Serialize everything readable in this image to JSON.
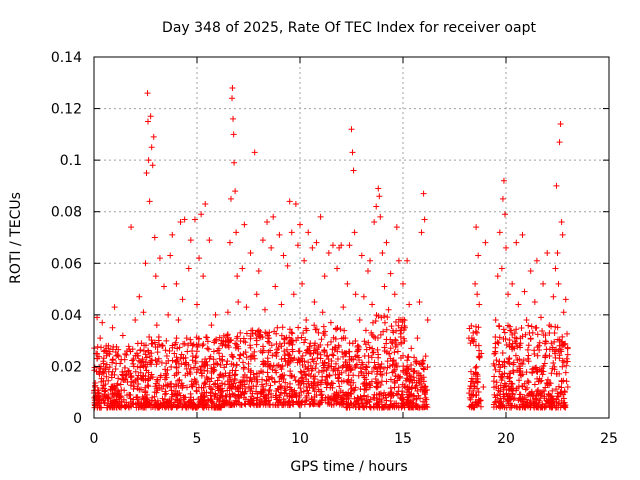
{
  "chart_data": {
    "type": "scatter",
    "title": "Day 348 of 2025, Rate Of TEC Index for receiver oapt",
    "xlabel": "GPS time / hours",
    "ylabel": "ROTI / TECUs",
    "xlim": [
      0,
      25
    ],
    "ylim": [
      0,
      0.14
    ],
    "x_ticks": [
      0,
      5,
      10,
      15,
      20,
      25
    ],
    "y_ticks": [
      0,
      0.02,
      0.04,
      0.06,
      0.08,
      0.1,
      0.12,
      0.14
    ],
    "x_tick_labels": [
      "0",
      "5",
      "10",
      "15",
      "20",
      "25"
    ],
    "y_tick_labels": [
      "0",
      "0.02",
      "0.04",
      "0.06",
      "0.08",
      "0.1",
      "0.12",
      "0.14"
    ],
    "grid": true,
    "marker": "+",
    "color": "#ff0000",
    "series": [
      {
        "points": [
          [
            0.05,
            0.012
          ],
          [
            0.1,
            0.025
          ],
          [
            0.15,
            0.039
          ],
          [
            0.2,
            0.008
          ],
          [
            0.25,
            0.018
          ],
          [
            0.3,
            0.031
          ],
          [
            0.35,
            0.014
          ],
          [
            0.4,
            0.037
          ],
          [
            0.45,
            0.022
          ],
          [
            0.5,
            0.009
          ],
          [
            0.6,
            0.016
          ],
          [
            0.7,
            0.028
          ],
          [
            0.8,
            0.011
          ],
          [
            0.9,
            0.035
          ],
          [
            1.0,
            0.043
          ],
          [
            1.05,
            0.019
          ],
          [
            1.1,
            0.007
          ],
          [
            1.2,
            0.024
          ],
          [
            1.3,
            0.013
          ],
          [
            1.4,
            0.032
          ],
          [
            1.5,
            0.018
          ],
          [
            1.6,
            0.026
          ],
          [
            1.7,
            0.009
          ],
          [
            1.8,
            0.074
          ],
          [
            1.9,
            0.021
          ],
          [
            2.0,
            0.038
          ],
          [
            2.1,
            0.015
          ],
          [
            2.2,
            0.047
          ],
          [
            2.3,
            0.029
          ],
          [
            2.4,
            0.041
          ],
          [
            2.5,
            0.06
          ],
          [
            2.55,
            0.095
          ],
          [
            2.6,
            0.126
          ],
          [
            2.62,
            0.115
          ],
          [
            2.65,
            0.1
          ],
          [
            2.7,
            0.084
          ],
          [
            2.75,
            0.117
          ],
          [
            2.8,
            0.105
          ],
          [
            2.85,
            0.098
          ],
          [
            2.9,
            0.109
          ],
          [
            2.95,
            0.07
          ],
          [
            3.0,
            0.055
          ],
          [
            3.05,
            0.036
          ],
          [
            3.1,
            0.022
          ],
          [
            3.2,
            0.062
          ],
          [
            3.3,
            0.028
          ],
          [
            3.4,
            0.051
          ],
          [
            3.5,
            0.017
          ],
          [
            3.6,
            0.04
          ],
          [
            3.7,
            0.063
          ],
          [
            3.8,
            0.071
          ],
          [
            3.9,
            0.025
          ],
          [
            4.0,
            0.052
          ],
          [
            4.1,
            0.038
          ],
          [
            4.2,
            0.076
          ],
          [
            4.3,
            0.046
          ],
          [
            4.4,
            0.077
          ],
          [
            4.5,
            0.031
          ],
          [
            4.6,
            0.058
          ],
          [
            4.7,
            0.069
          ],
          [
            4.8,
            0.024
          ],
          [
            4.9,
            0.077
          ],
          [
            5.0,
            0.044
          ],
          [
            5.1,
            0.062
          ],
          [
            5.2,
            0.079
          ],
          [
            5.3,
            0.055
          ],
          [
            5.4,
            0.083
          ],
          [
            5.5,
            0.027
          ],
          [
            5.6,
            0.069
          ],
          [
            5.7,
            0.036
          ],
          [
            5.8,
            0.018
          ],
          [
            5.9,
            0.04
          ],
          [
            6.0,
            0.012
          ],
          [
            6.1,
            0.023
          ],
          [
            6.2,
            0.03
          ],
          [
            6.3,
            0.016
          ],
          [
            6.4,
            0.028
          ],
          [
            6.5,
            0.041
          ],
          [
            6.6,
            0.068
          ],
          [
            6.65,
            0.085
          ],
          [
            6.7,
            0.124
          ],
          [
            6.72,
            0.128
          ],
          [
            6.75,
            0.116
          ],
          [
            6.78,
            0.11
          ],
          [
            6.8,
            0.099
          ],
          [
            6.85,
            0.088
          ],
          [
            6.9,
            0.072
          ],
          [
            6.95,
            0.055
          ],
          [
            7.0,
            0.045
          ],
          [
            7.1,
            0.033
          ],
          [
            7.2,
            0.058
          ],
          [
            7.3,
            0.075
          ],
          [
            7.4,
            0.043
          ],
          [
            7.5,
            0.021
          ],
          [
            7.6,
            0.064
          ],
          [
            7.7,
            0.034
          ],
          [
            7.8,
            0.103
          ],
          [
            7.9,
            0.048
          ],
          [
            8.0,
            0.057
          ],
          [
            8.1,
            0.026
          ],
          [
            8.2,
            0.069
          ],
          [
            8.3,
            0.042
          ],
          [
            8.4,
            0.076
          ],
          [
            8.5,
            0.031
          ],
          [
            8.6,
            0.066
          ],
          [
            8.7,
            0.078
          ],
          [
            8.8,
            0.051
          ],
          [
            8.9,
            0.035
          ],
          [
            9.0,
            0.071
          ],
          [
            9.1,
            0.044
          ],
          [
            9.2,
            0.063
          ],
          [
            9.3,
            0.022
          ],
          [
            9.4,
            0.059
          ],
          [
            9.5,
            0.084
          ],
          [
            9.6,
            0.072
          ],
          [
            9.7,
            0.048
          ],
          [
            9.8,
            0.083
          ],
          [
            9.9,
            0.067
          ],
          [
            10.0,
            0.075
          ],
          [
            10.1,
            0.052
          ],
          [
            10.2,
            0.061
          ],
          [
            10.3,
            0.038
          ],
          [
            10.4,
            0.072
          ],
          [
            10.5,
            0.029
          ],
          [
            10.6,
            0.066
          ],
          [
            10.7,
            0.045
          ],
          [
            10.8,
            0.068
          ],
          [
            10.9,
            0.033
          ],
          [
            11.0,
            0.078
          ],
          [
            11.1,
            0.041
          ],
          [
            11.2,
            0.055
          ],
          [
            11.3,
            0.024
          ],
          [
            11.4,
            0.064
          ],
          [
            11.5,
            0.037
          ],
          [
            11.6,
            0.067
          ],
          [
            11.7,
            0.019
          ],
          [
            11.8,
            0.058
          ],
          [
            11.9,
            0.066
          ],
          [
            12.0,
            0.067
          ],
          [
            12.1,
            0.043
          ],
          [
            12.2,
            0.031
          ],
          [
            12.3,
            0.052
          ],
          [
            12.4,
            0.067
          ],
          [
            12.5,
            0.112
          ],
          [
            12.55,
            0.103
          ],
          [
            12.6,
            0.096
          ],
          [
            12.65,
            0.072
          ],
          [
            12.7,
            0.048
          ],
          [
            12.8,
            0.026
          ],
          [
            12.9,
            0.038
          ],
          [
            13.0,
            0.063
          ],
          [
            13.1,
            0.047
          ],
          [
            13.2,
            0.034
          ],
          [
            13.3,
            0.057
          ],
          [
            13.4,
            0.061
          ],
          [
            13.5,
            0.044
          ],
          [
            13.6,
            0.076
          ],
          [
            13.7,
            0.082
          ],
          [
            13.8,
            0.089
          ],
          [
            13.85,
            0.086
          ],
          [
            13.9,
            0.078
          ],
          [
            14.0,
            0.064
          ],
          [
            14.1,
            0.051
          ],
          [
            14.2,
            0.068
          ],
          [
            14.3,
            0.042
          ],
          [
            14.4,
            0.056
          ],
          [
            14.5,
            0.029
          ],
          [
            14.6,
            0.048
          ],
          [
            14.7,
            0.074
          ],
          [
            14.8,
            0.061
          ],
          [
            14.9,
            0.038
          ],
          [
            15.0,
            0.052
          ],
          [
            15.1,
            0.035
          ],
          [
            15.2,
            0.061
          ],
          [
            15.3,
            0.044
          ],
          [
            15.4,
            0.027
          ],
          [
            15.5,
            0.018
          ],
          [
            15.6,
            0.012
          ],
          [
            15.7,
            0.031
          ],
          [
            15.8,
            0.045
          ],
          [
            15.9,
            0.072
          ],
          [
            16.0,
            0.087
          ],
          [
            16.05,
            0.077
          ],
          [
            16.1,
            0.024
          ],
          [
            16.2,
            0.038
          ],
          [
            18.2,
            0.031
          ],
          [
            18.3,
            0.018
          ],
          [
            18.4,
            0.014
          ],
          [
            18.5,
            0.052
          ],
          [
            18.55,
            0.074
          ],
          [
            18.6,
            0.048
          ],
          [
            18.65,
            0.063
          ],
          [
            18.7,
            0.044
          ],
          [
            18.8,
            0.025
          ],
          [
            18.9,
            0.012
          ],
          [
            19.0,
            0.068
          ],
          [
            19.4,
            0.021
          ],
          [
            19.5,
            0.038
          ],
          [
            19.6,
            0.055
          ],
          [
            19.7,
            0.072
          ],
          [
            19.8,
            0.058
          ],
          [
            19.85,
            0.085
          ],
          [
            19.9,
            0.092
          ],
          [
            19.95,
            0.079
          ],
          [
            20.0,
            0.066
          ],
          [
            20.1,
            0.048
          ],
          [
            20.2,
            0.034
          ],
          [
            20.3,
            0.052
          ],
          [
            20.4,
            0.027
          ],
          [
            20.5,
            0.068
          ],
          [
            20.6,
            0.044
          ],
          [
            20.7,
            0.031
          ],
          [
            20.8,
            0.071
          ],
          [
            20.9,
            0.049
          ],
          [
            21.0,
            0.038
          ],
          [
            21.1,
            0.022
          ],
          [
            21.2,
            0.057
          ],
          [
            21.3,
            0.033
          ],
          [
            21.4,
            0.045
          ],
          [
            21.5,
            0.061
          ],
          [
            21.6,
            0.028
          ],
          [
            21.7,
            0.039
          ],
          [
            21.8,
            0.052
          ],
          [
            21.9,
            0.024
          ],
          [
            22.0,
            0.064
          ],
          [
            22.1,
            0.036
          ],
          [
            22.2,
            0.029
          ],
          [
            22.3,
            0.047
          ],
          [
            22.4,
            0.058
          ],
          [
            22.45,
            0.09
          ],
          [
            22.5,
            0.064
          ],
          [
            22.55,
            0.052
          ],
          [
            22.6,
            0.107
          ],
          [
            22.65,
            0.114
          ],
          [
            22.7,
            0.076
          ],
          [
            22.75,
            0.071
          ],
          [
            22.8,
            0.041
          ],
          [
            22.9,
            0.046
          ],
          [
            22.95,
            0.023
          ],
          [
            23.0,
            0.012
          ]
        ],
        "bands": [
          [
            0.0,
            2.0,
            0.004,
            0.028
          ],
          [
            2.0,
            6.2,
            0.004,
            0.032
          ],
          [
            6.2,
            9.0,
            0.005,
            0.034
          ],
          [
            9.0,
            12.2,
            0.005,
            0.036
          ],
          [
            12.2,
            13.4,
            0.004,
            0.03
          ],
          [
            13.4,
            15.2,
            0.004,
            0.04
          ],
          [
            15.2,
            16.2,
            0.004,
            0.024
          ],
          [
            18.2,
            18.8,
            0.004,
            0.036
          ],
          [
            19.4,
            23.0,
            0.004,
            0.036
          ]
        ]
      }
    ]
  }
}
